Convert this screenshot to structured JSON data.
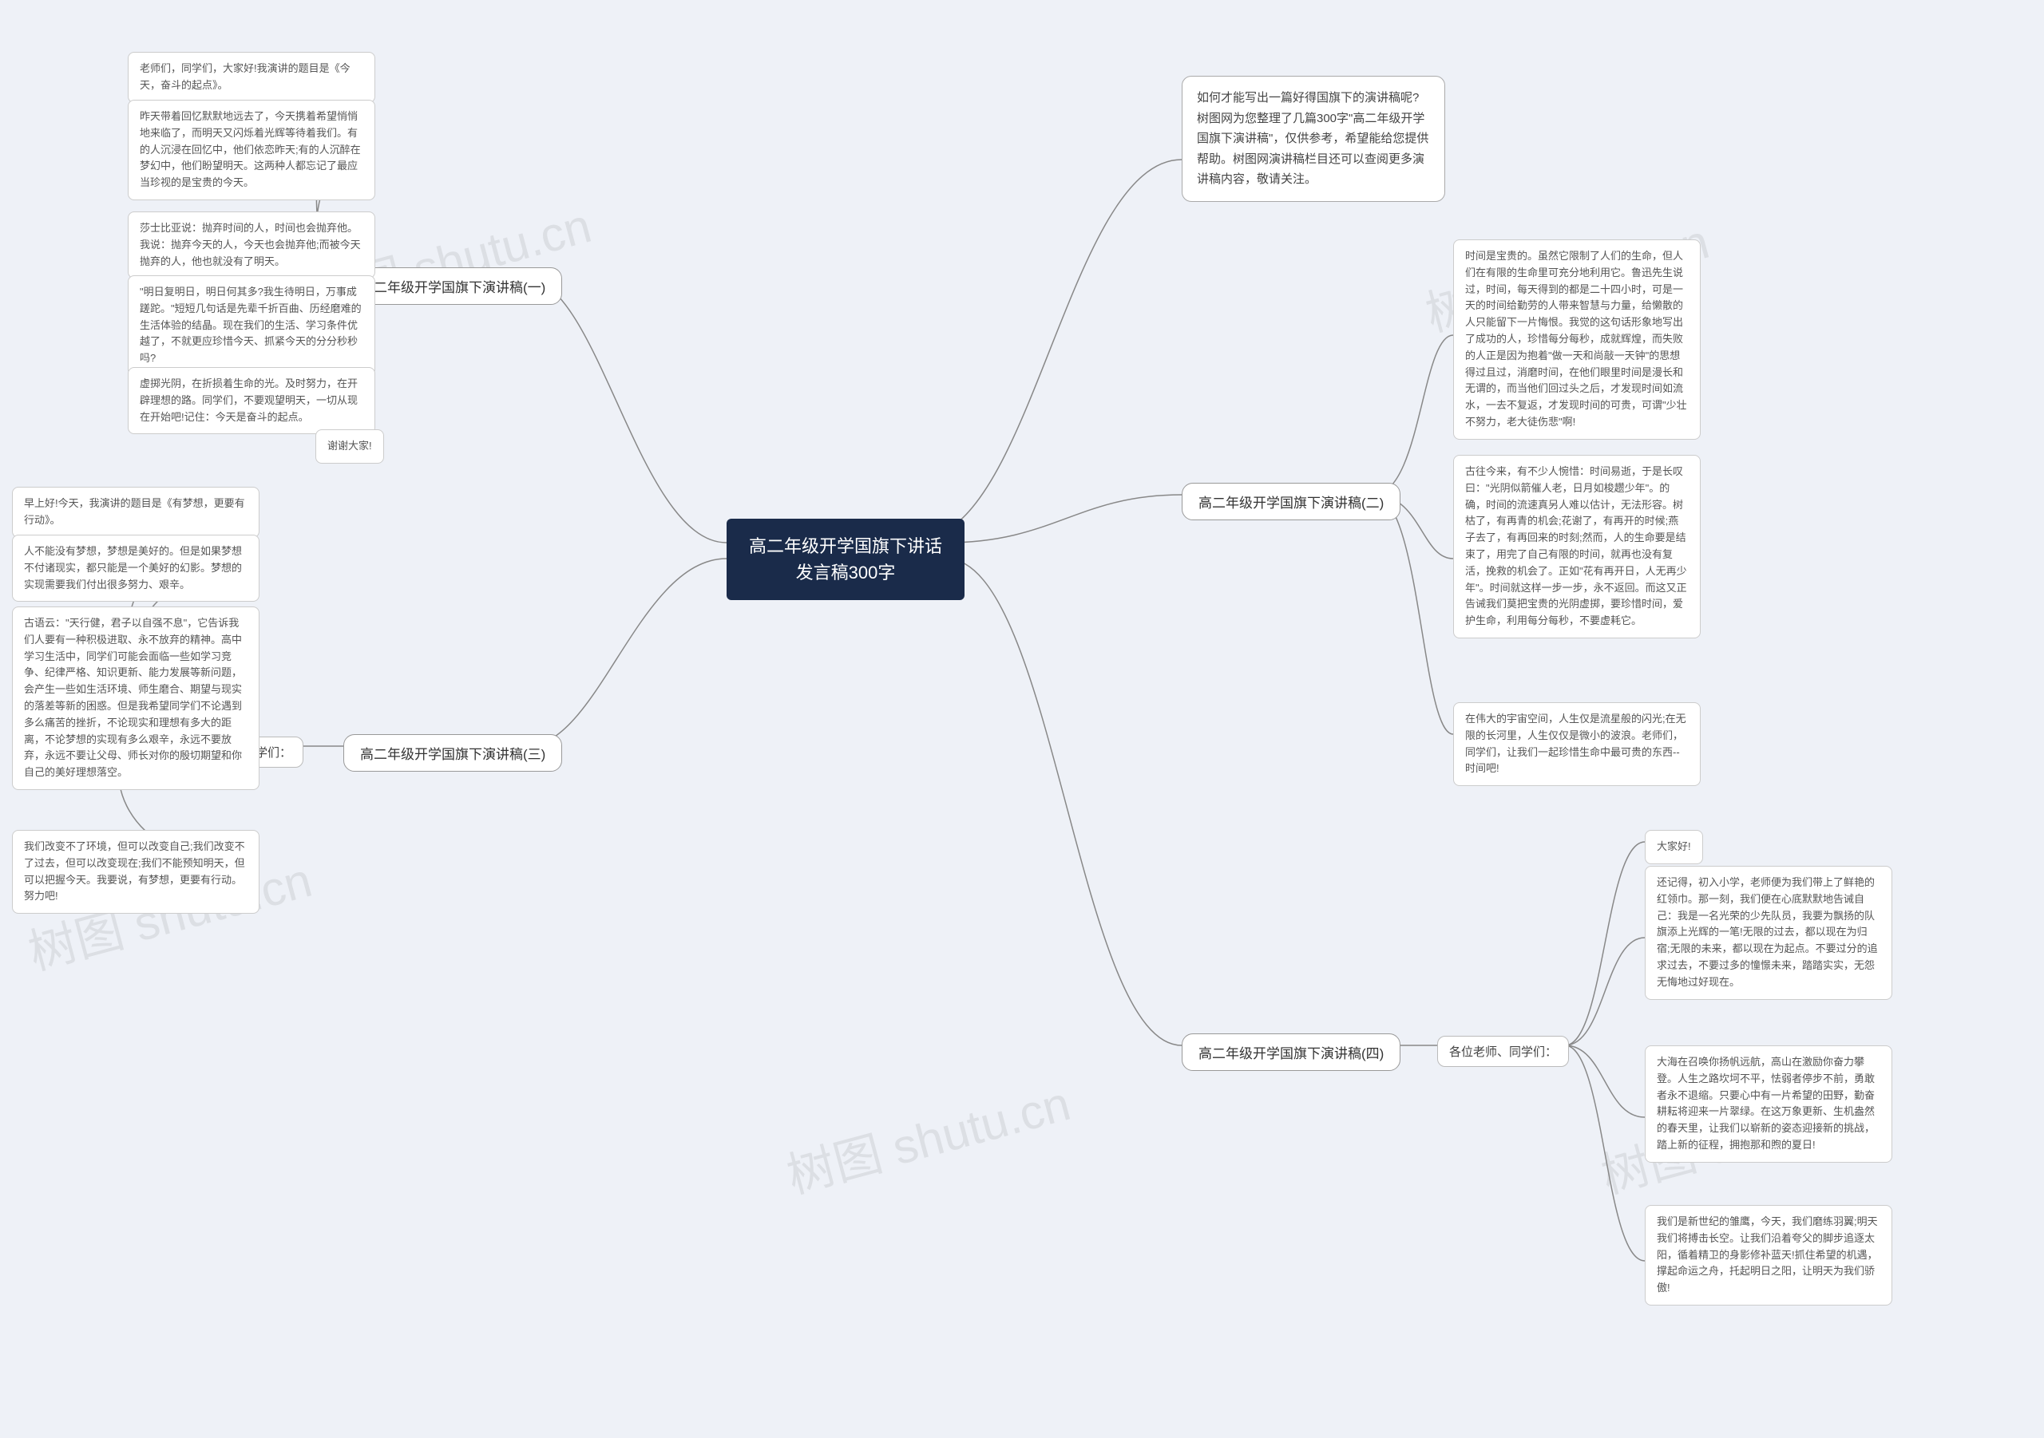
{
  "colors": {
    "page_bg": "#eef1f7",
    "root_bg": "#1a2b4a",
    "root_text": "#ffffff",
    "node_bg": "#ffffff",
    "node_border": "#999999",
    "leaf_border": "#cccccc",
    "connector": "#888888",
    "text": "#444444",
    "watermark": "rgba(120,120,120,0.15)"
  },
  "typography": {
    "root_fontsize": 22,
    "branch_fontsize": 17,
    "leaf_fontsize": 13,
    "font_family": "Microsoft YaHei"
  },
  "watermark_text": "树图 shutu.cn",
  "root": {
    "title": "高二年级开学国旗下讲话\n发言稿300字"
  },
  "intro": "如何才能写出一篇好得国旗下的演讲稿呢?树图网为您整理了几篇300字\"高二年级开学国旗下演讲稿\"，仅供参考，希望能给您提供帮助。树图网演讲稿栏目还可以查阅更多演讲稿内容，敬请关注。",
  "branches": {
    "b1": {
      "title": "高二年级开学国旗下演讲稿(一)",
      "leaves": [
        "老师们，同学们，大家好!我演讲的题目是《今天，奋斗的起点》。",
        "昨天带着回忆默默地远去了，今天携着希望悄悄地来临了，而明天又闪烁着光辉等待着我们。有的人沉浸在回忆中，他们依恋昨天;有的人沉醉在梦幻中，他们盼望明天。这两种人都忘记了最应当珍视的是宝贵的今天。",
        "莎士比亚说：抛弃时间的人，时间也会抛弃他。我说：抛弃今天的人，今天也会抛弃他;而被今天抛弃的人，他也就没有了明天。",
        "\"明日复明日，明日何其多?我生待明日，万事成蹉跎。\"短短几句话是先辈千折百曲、历经磨难的生活体验的结晶。现在我们的生活、学习条件优越了，不就更应珍惜今天、抓紧今天的分分秒秒吗?",
        "虚掷光阴，在折损着生命的光。及时努力，在开辟理想的路。同学们，不要观望明天，一切从现在开始吧!记住：今天是奋斗的起点。",
        "谢谢大家!"
      ]
    },
    "b2": {
      "title": "高二年级开学国旗下演讲稿(二)",
      "leaves": [
        "时间是宝贵的。虽然它限制了人们的生命，但人们在有限的生命里可充分地利用它。鲁迅先生说过，时间，每天得到的都是二十四小时，可是一天的时间给勤劳的人带来智慧与力量，给懒散的人只能留下一片悔恨。我觉的这句话形象地写出了成功的人，珍惜每分每秒，成就辉煌，而失败的人正是因为抱着\"做一天和尚敲一天钟\"的思想得过且过，消磨时间，在他们眼里时间是漫长和无谓的，而当他们回过头之后，才发现时间如流水，一去不复返，才发现时间的可贵，可谓\"少壮不努力，老大徒伤悲\"啊!",
        "古往今来，有不少人惋惜：时间易逝，于是长叹曰：\"光阴似箭催人老，日月如梭趱少年\"。的确，时间的流速真另人难以估计，无法形容。树枯了，有再青的机会;花谢了，有再开的时候;燕子去了，有再回来的时刻;然而，人的生命要是结束了，用完了自己有限的时间，就再也没有复活，挽救的机会了。正如\"花有再开日，人无再少年\"。时间就这样一步一步，永不返回。而这又正告诫我们莫把宝贵的光阴虚掷，要珍惜时间，爱护生命，利用每分每秒，不要虚耗它。",
        "在伟大的宇宙空间，人生仅是流星般的闪光;在无限的长河里，人生仅仅是微小的波浪。老师们，同学们，让我们一起珍惜生命中最可贵的东西--时间吧!"
      ]
    },
    "b3": {
      "title": "高二年级开学国旗下演讲稿(三)",
      "sub": "尊敬的老师们，同学们：",
      "leaves": [
        "早上好!今天，我演讲的题目是《有梦想，更要有行动》。",
        "人不能没有梦想，梦想是美好的。但是如果梦想不付诸现实，都只能是一个美好的幻影。梦想的实现需要我们付出很多努力、艰辛。",
        "古语云：\"天行健，君子以自强不息\"，它告诉我们人要有一种积极进取、永不放弃的精神。高中学习生活中，同学们可能会面临一些如学习竞争、纪律严格、知识更新、能力发展等新问题，会产生一些如生活环境、师生磨合、期望与现实的落差等新的困惑。但是我希望同学们不论遇到多么痛苦的挫折，不论现实和理想有多大的距离，不论梦想的实现有多么艰辛，永远不要放弃，永远不要让父母、师长对你的殷切期望和你自己的美好理想落空。",
        "我们改变不了环境，但可以改变自己;我们改变不了过去，但可以改变现在;我们不能预知明天，但可以把握今天。我要说，有梦想，更要有行动。努力吧!"
      ]
    },
    "b4": {
      "title": "高二年级开学国旗下演讲稿(四)",
      "sub": "各位老师、同学们：",
      "leaves": [
        "大家好!",
        "还记得，初入小学，老师便为我们带上了鲜艳的红领巾。那一刻，我们便在心底默默地告诫自己：我是一名光荣的少先队员，我要为飘扬的队旗添上光辉的一笔!无限的过去，都以现在为归宿;无限的未来，都以现在为起点。不要过分的追求过去，不要过多的憧憬未来，踏踏实实，无怨无悔地过好现在。",
        "大海在召唤你扬帆远航，高山在激励你奋力攀登。人生之路坎坷不平，怯弱者停步不前，勇敢者永不退缩。只要心中有一片希望的田野，勤奋耕耘将迎来一片翠绿。在这万象更新、生机盎然的春天里，让我们以崭新的姿态迎接新的挑战，踏上新的征程，拥抱那和煦的夏日!",
        "我们是新世纪的雏鹰，今天，我们磨练羽翼;明天我们将搏击长空。让我们沿着夸父的脚步追逐太阳，循着精卫的身影修补蓝天!抓住希望的机遇，撑起命运之舟，托起明日之阳，让明天为我们骄傲!"
      ]
    }
  }
}
